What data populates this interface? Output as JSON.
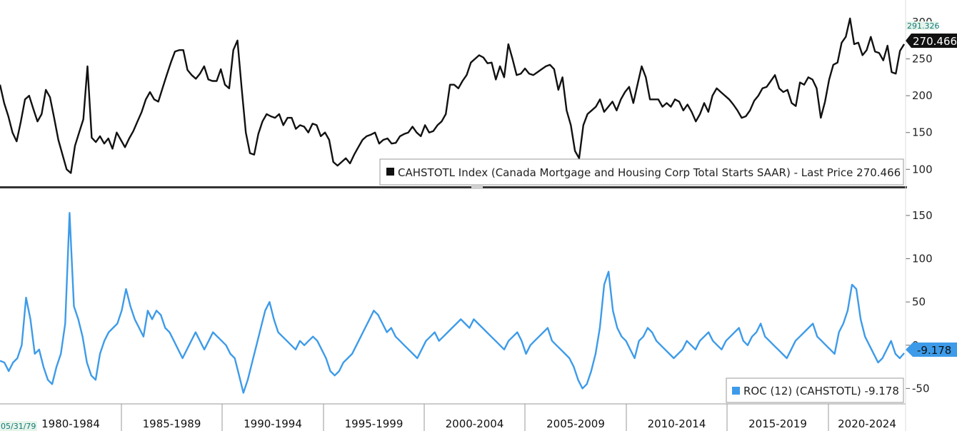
{
  "chart_data": [
    {
      "type": "line",
      "title": "",
      "legend_label": "CAHSTOTL Index (Canada Mortgage and Housing Corp Total Starts SAAR) - Last Price 270.466",
      "ylim": [
        78,
        330
      ],
      "yticks": [
        100,
        150,
        200,
        250,
        300
      ],
      "last_value_label": "270.466",
      "secondary_value_label": "291.326",
      "line_color": "#111111",
      "series": [
        {
          "values": [
            215,
            190,
            172,
            150,
            138,
            165,
            195,
            200,
            182,
            165,
            175,
            208,
            198,
            170,
            140,
            120,
            100,
            95,
            132,
            150,
            168,
            240,
            143,
            137,
            145,
            135,
            142,
            128,
            150,
            140,
            130,
            142,
            152,
            165,
            178,
            195,
            205,
            195,
            192,
            210,
            228,
            245,
            260,
            262,
            262,
            235,
            228,
            223,
            230,
            240,
            222,
            220,
            220,
            236,
            215,
            210,
            262,
            275,
            210,
            150,
            122,
            120,
            148,
            165,
            175,
            172,
            170,
            175,
            160,
            170,
            170,
            155,
            160,
            158,
            150,
            162,
            160,
            145,
            150,
            140,
            110,
            105,
            110,
            115,
            108,
            120,
            130,
            140,
            145,
            147,
            150,
            135,
            140,
            142,
            135,
            136,
            145,
            148,
            150,
            158,
            150,
            145,
            160,
            150,
            152,
            160,
            165,
            175,
            215,
            215,
            210,
            220,
            228,
            245,
            250,
            255,
            252,
            244,
            245,
            222,
            240,
            225,
            270,
            250,
            228,
            230,
            237,
            230,
            228,
            232,
            236,
            240,
            242,
            236,
            208,
            225,
            180,
            160,
            125,
            115,
            160,
            175,
            180,
            185,
            195,
            178,
            185,
            192,
            180,
            195,
            205,
            212,
            190,
            215,
            240,
            225,
            195,
            195,
            195,
            185,
            190,
            185,
            195,
            192,
            180,
            188,
            178,
            165,
            175,
            190,
            178,
            200,
            210,
            205,
            200,
            195,
            188,
            180,
            170,
            172,
            180,
            193,
            200,
            210,
            212,
            220,
            228,
            210,
            205,
            208,
            190,
            186,
            218,
            215,
            225,
            222,
            210,
            170,
            192,
            222,
            242,
            245,
            272,
            280,
            305,
            270,
            272,
            255,
            262,
            280,
            260,
            258,
            248,
            268,
            232,
            230,
            261,
            270
          ]
        }
      ]
    },
    {
      "type": "line",
      "title": "",
      "legend_label": "ROC (12) (CAHSTOTL) -9.178",
      "ylim": [
        -67,
        178
      ],
      "yticks": [
        -50,
        0,
        50,
        100,
        150
      ],
      "last_value_label": "-9.178",
      "line_color": "#3d9be9",
      "series": [
        {
          "values": [
            -18,
            -20,
            -30,
            -20,
            -15,
            0,
            55,
            30,
            -10,
            -5,
            -25,
            -40,
            -45,
            -25,
            -10,
            25,
            153,
            45,
            30,
            10,
            -20,
            -35,
            -40,
            -10,
            5,
            15,
            20,
            25,
            40,
            65,
            45,
            30,
            20,
            10,
            40,
            30,
            40,
            35,
            20,
            15,
            5,
            -5,
            -15,
            -5,
            5,
            15,
            5,
            -5,
            5,
            15,
            10,
            5,
            0,
            -10,
            -15,
            -35,
            -55,
            -40,
            -20,
            0,
            20,
            40,
            50,
            30,
            15,
            10,
            5,
            0,
            -5,
            5,
            0,
            5,
            10,
            5,
            -5,
            -15,
            -30,
            -35,
            -30,
            -20,
            -15,
            -10,
            0,
            10,
            20,
            30,
            40,
            35,
            25,
            15,
            20,
            10,
            5,
            0,
            -5,
            -10,
            -15,
            -5,
            5,
            10,
            15,
            5,
            10,
            15,
            20,
            25,
            30,
            25,
            20,
            30,
            25,
            20,
            15,
            10,
            5,
            0,
            -5,
            5,
            10,
            15,
            5,
            -10,
            0,
            5,
            10,
            15,
            20,
            5,
            0,
            -5,
            -10,
            -15,
            -25,
            -40,
            -50,
            -45,
            -30,
            -10,
            20,
            70,
            85,
            40,
            20,
            10,
            5,
            -5,
            -15,
            5,
            10,
            20,
            15,
            5,
            0,
            -5,
            -10,
            -15,
            -10,
            -5,
            5,
            0,
            -5,
            5,
            10,
            15,
            5,
            0,
            -5,
            5,
            10,
            15,
            20,
            5,
            0,
            10,
            15,
            25,
            10,
            5,
            0,
            -5,
            -10,
            -15,
            -5,
            5,
            10,
            15,
            20,
            25,
            10,
            5,
            0,
            -5,
            -10,
            15,
            25,
            40,
            70,
            65,
            30,
            10,
            0,
            -10,
            -20,
            -15,
            -5,
            5,
            -10,
            -15,
            -9.178
          ]
        }
      ]
    }
  ],
  "x_axis": {
    "start_date": "05/31/79",
    "labels": [
      "1980-1984",
      "1985-1989",
      "1990-1994",
      "1995-1999",
      "2000-2004",
      "2005-2009",
      "2010-2014",
      "2015-2019",
      "2020-2024"
    ]
  }
}
